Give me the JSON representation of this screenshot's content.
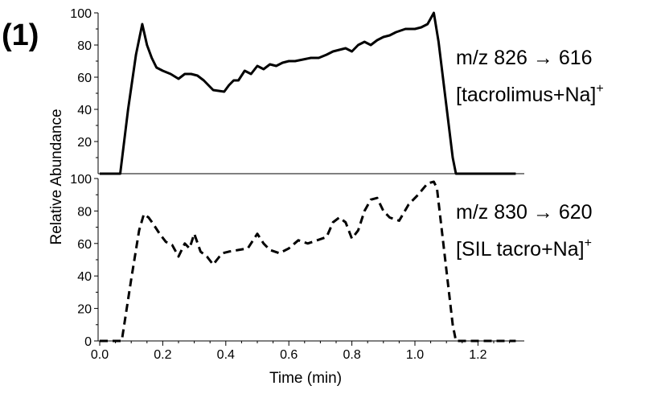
{
  "panel_label": "(1)",
  "chart_data": {
    "type": "line",
    "xlabel": "Time (min)",
    "ylabel": "Relative Abundance",
    "xlim": [
      0,
      1.32
    ],
    "x_ticks": [
      "0.0",
      "0.2",
      "0.4",
      "0.6",
      "0.8",
      "1.0",
      "1.2"
    ],
    "grid": false,
    "panels": [
      {
        "id": "top",
        "line_style": "solid",
        "ylim": [
          0,
          100
        ],
        "y_ticks": [
          "20",
          "40",
          "60",
          "80",
          "100"
        ],
        "annotation_line1": "m/z 826 → 616",
        "annotation_line2": "[tacrolimus+Na]",
        "annotation_sup": "+",
        "series": [
          {
            "x": [
              0.0,
              0.065,
              0.09,
              0.115,
              0.135,
              0.15,
              0.165,
              0.18,
              0.2,
              0.225,
              0.25,
              0.27,
              0.29,
              0.31,
              0.33,
              0.36,
              0.395,
              0.41,
              0.425,
              0.44,
              0.46,
              0.48,
              0.5,
              0.52,
              0.54,
              0.56,
              0.58,
              0.6,
              0.62,
              0.645,
              0.67,
              0.695,
              0.72,
              0.74,
              0.76,
              0.78,
              0.8,
              0.82,
              0.84,
              0.86,
              0.88,
              0.9,
              0.92,
              0.94,
              0.97,
              1.0,
              1.02,
              1.04,
              1.06,
              1.075,
              1.12,
              1.13,
              1.32
            ],
            "y": [
              0,
              0,
              40,
              74,
              93,
              80,
              72,
              66,
              64,
              62,
              59,
              62,
              62,
              61,
              58,
              52,
              51,
              55,
              58,
              58,
              64,
              62,
              67,
              65,
              68,
              67,
              69,
              70,
              70,
              71,
              72,
              72,
              74,
              76,
              77,
              78,
              76,
              80,
              82,
              80,
              83,
              85,
              86,
              88,
              90,
              90,
              91,
              93,
              100,
              82,
              10,
              0,
              0
            ]
          }
        ]
      },
      {
        "id": "bottom",
        "line_style": "dashed",
        "ylim": [
          0,
          100
        ],
        "y_ticks": [
          "0",
          "20",
          "40",
          "60",
          "80",
          "100"
        ],
        "annotation_line1": "m/z 830 → 620",
        "annotation_line2": "[SIL tacro+Na]",
        "annotation_sup": "+",
        "series": [
          {
            "x": [
              0.0,
              0.07,
              0.1,
              0.125,
              0.14,
              0.155,
              0.17,
              0.19,
              0.21,
              0.23,
              0.25,
              0.27,
              0.285,
              0.3,
              0.32,
              0.34,
              0.36,
              0.38,
              0.39,
              0.41,
              0.44,
              0.47,
              0.5,
              0.52,
              0.54,
              0.57,
              0.6,
              0.63,
              0.66,
              0.69,
              0.72,
              0.74,
              0.76,
              0.78,
              0.8,
              0.82,
              0.84,
              0.86,
              0.88,
              0.9,
              0.92,
              0.95,
              0.98,
              1.01,
              1.04,
              1.06,
              1.07,
              1.12,
              1.13,
              1.32
            ],
            "y": [
              0,
              0,
              38,
              68,
              78,
              76,
              72,
              66,
              61,
              59,
              52,
              60,
              57,
              66,
              55,
              52,
              47,
              52,
              54,
              55,
              56,
              57,
              66,
              60,
              56,
              54,
              57,
              62,
              60,
              62,
              64,
              73,
              76,
              73,
              63,
              68,
              80,
              87,
              88,
              80,
              76,
              74,
              84,
              90,
              97,
              98,
              94,
              10,
              0,
              0
            ]
          }
        ]
      }
    ]
  }
}
